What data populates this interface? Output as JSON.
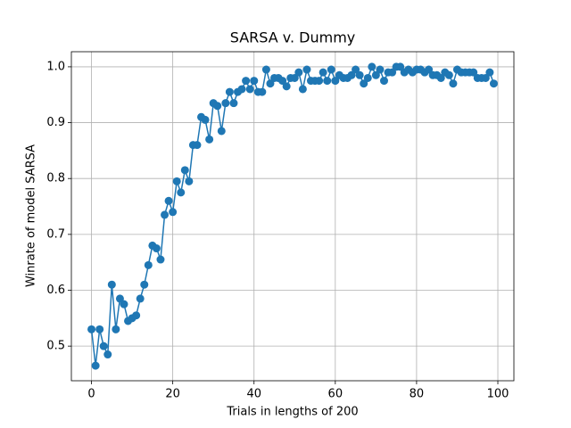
{
  "chart_data": {
    "type": "line",
    "title": "SARSA v. Dummy",
    "x_label": "Trials in lengths of 200",
    "y_label": "Winrate of model SARSA",
    "x": [
      0,
      1,
      2,
      3,
      4,
      5,
      6,
      7,
      8,
      9,
      10,
      11,
      12,
      13,
      14,
      15,
      16,
      17,
      18,
      19,
      20,
      21,
      22,
      23,
      24,
      25,
      26,
      27,
      28,
      29,
      30,
      31,
      32,
      33,
      34,
      35,
      36,
      37,
      38,
      39,
      40,
      41,
      42,
      43,
      44,
      45,
      46,
      47,
      48,
      49,
      50,
      51,
      52,
      53,
      54,
      55,
      56,
      57,
      58,
      59,
      60,
      61,
      62,
      63,
      64,
      65,
      66,
      67,
      68,
      69,
      70,
      71,
      72,
      73,
      74,
      75,
      76,
      77,
      78,
      79,
      80,
      81,
      82,
      83,
      84,
      85,
      86,
      87,
      88,
      89,
      90,
      91,
      92,
      93,
      94,
      95,
      96,
      97,
      98,
      99
    ],
    "series": [
      {
        "color": "#1f77b4",
        "values": [
          0.53,
          0.465,
          0.53,
          0.5,
          0.485,
          0.61,
          0.53,
          0.585,
          0.575,
          0.545,
          0.55,
          0.555,
          0.585,
          0.61,
          0.645,
          0.68,
          0.675,
          0.655,
          0.735,
          0.76,
          0.74,
          0.795,
          0.775,
          0.815,
          0.795,
          0.86,
          0.86,
          0.91,
          0.905,
          0.87,
          0.935,
          0.93,
          0.885,
          0.935,
          0.955,
          0.935,
          0.955,
          0.96,
          0.975,
          0.96,
          0.975,
          0.955,
          0.955,
          0.995,
          0.97,
          0.98,
          0.98,
          0.975,
          0.965,
          0.98,
          0.98,
          0.99,
          0.96,
          0.995,
          0.975,
          0.975,
          0.975,
          0.99,
          0.975,
          0.995,
          0.975,
          0.985,
          0.98,
          0.98,
          0.985,
          0.995,
          0.985,
          0.97,
          0.98,
          1.0,
          0.985,
          0.995,
          0.975,
          0.99,
          0.99,
          1.0,
          1.0,
          0.99,
          0.995,
          0.99,
          0.995,
          0.995,
          0.99,
          0.995,
          0.985,
          0.985,
          0.98,
          0.99,
          0.985,
          0.97,
          0.995,
          0.99,
          0.99,
          0.99,
          0.99,
          0.98,
          0.98,
          0.98,
          0.99,
          0.97
        ]
      }
    ],
    "xlim": [
      -4.95,
      103.95
    ],
    "ylim": [
      0.438,
      1.027
    ],
    "xticks": [
      0,
      20,
      40,
      60,
      80,
      100
    ],
    "yticks": [
      0.5,
      0.6,
      0.7,
      0.8,
      0.9,
      {
        "value": 1,
        "label": "1.0"
      }
    ],
    "grid": true
  }
}
